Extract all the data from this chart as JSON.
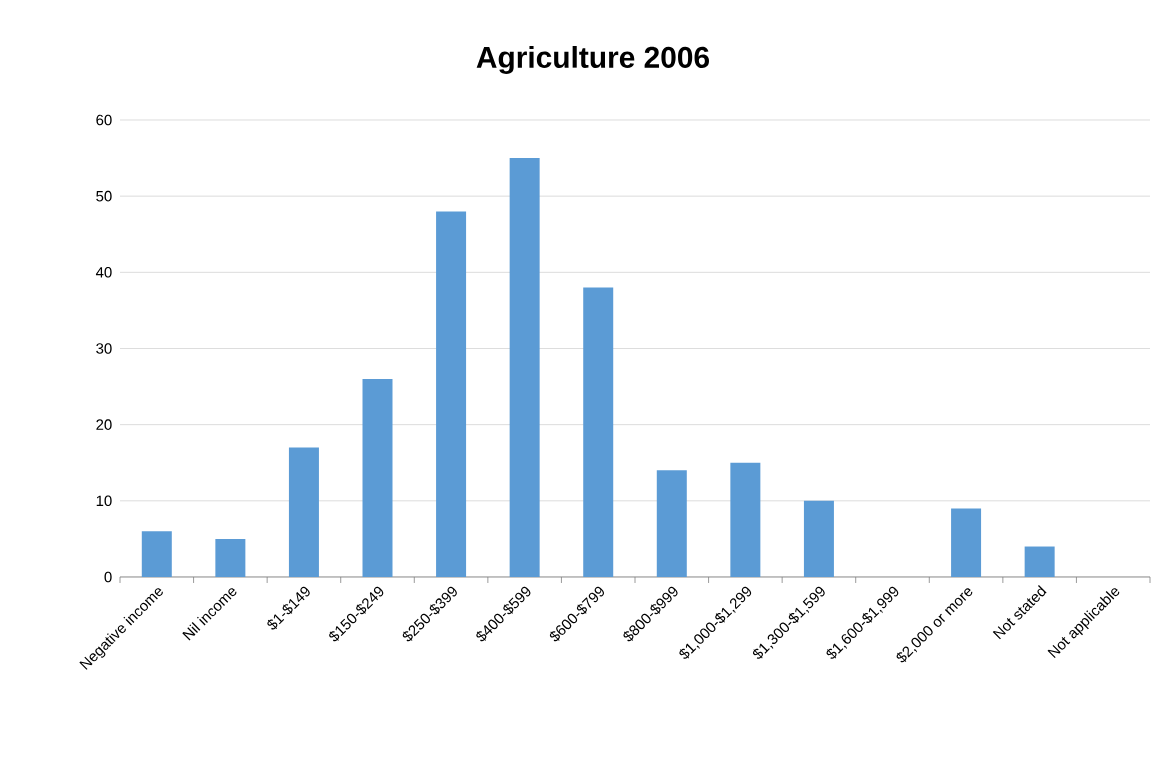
{
  "chart_data": {
    "type": "bar",
    "title": "Agriculture 2006",
    "categories": [
      "Negative income",
      "Nil income",
      "$1-$149",
      "$150-$249",
      "$250-$399",
      "$400-$599",
      "$600-$799",
      "$800-$999",
      "$1,000-$1,299",
      "$1,300-$1,599",
      "$1,600-$1,999",
      "$2,000 or more",
      "Not stated",
      "Not applicable"
    ],
    "values": [
      6,
      5,
      17,
      26,
      48,
      55,
      38,
      14,
      15,
      10,
      0,
      9,
      4,
      0
    ],
    "color": "#5b9bd5",
    "ylim": [
      0,
      60
    ],
    "yticks": [
      0,
      10,
      20,
      30,
      40,
      50,
      60
    ],
    "grid": "y"
  }
}
